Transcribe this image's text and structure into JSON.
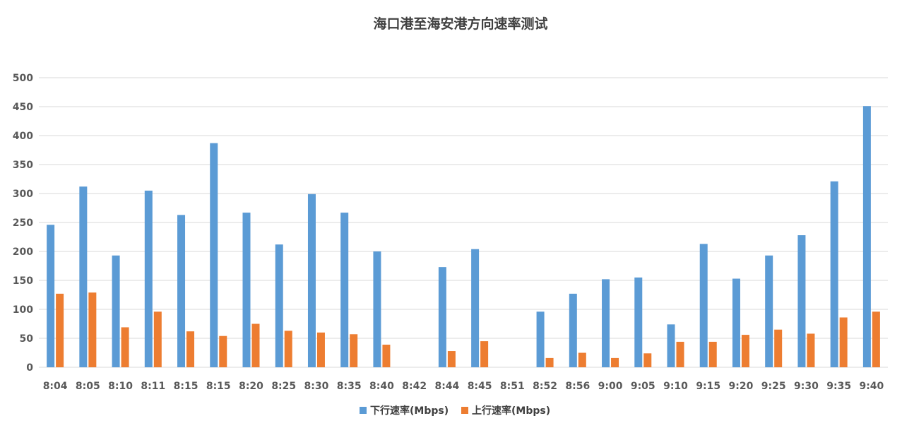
{
  "chart_data": {
    "type": "bar",
    "title": "海口港至海安港方向速率测试",
    "xlabel": "",
    "ylabel": "",
    "ylim": [
      0,
      500
    ],
    "yticks": [
      0,
      50,
      100,
      150,
      200,
      250,
      300,
      350,
      400,
      450,
      500
    ],
    "grid": true,
    "legend_position": "bottom",
    "categories": [
      "8:04",
      "8:05",
      "8:10",
      "8:11",
      "8:15",
      "8:15",
      "8:20",
      "8:25",
      "8:30",
      "8:35",
      "8:40",
      "8:42",
      "8:44",
      "8:45",
      "8:51",
      "8:52",
      "8:56",
      "9:00",
      "9:05",
      "9:10",
      "9:15",
      "9:20",
      "9:25",
      "9:30",
      "9:35",
      "9:40"
    ],
    "series": [
      {
        "name": "下行速率(Mbps)",
        "color": "#5b9bd5",
        "values": [
          246,
          312,
          193,
          305,
          263,
          387,
          267,
          212,
          299,
          267,
          200,
          0,
          173,
          204,
          0,
          96,
          127,
          152,
          155,
          74,
          213,
          153,
          193,
          228,
          321,
          451
        ]
      },
      {
        "name": "上行速率(Mbps)",
        "color": "#ed7d31",
        "values": [
          127,
          129,
          69,
          96,
          62,
          54,
          75,
          63,
          60,
          57,
          39,
          0,
          28,
          45,
          0,
          16,
          25,
          16,
          24,
          44,
          44,
          56,
          65,
          58,
          86,
          96
        ]
      }
    ]
  }
}
